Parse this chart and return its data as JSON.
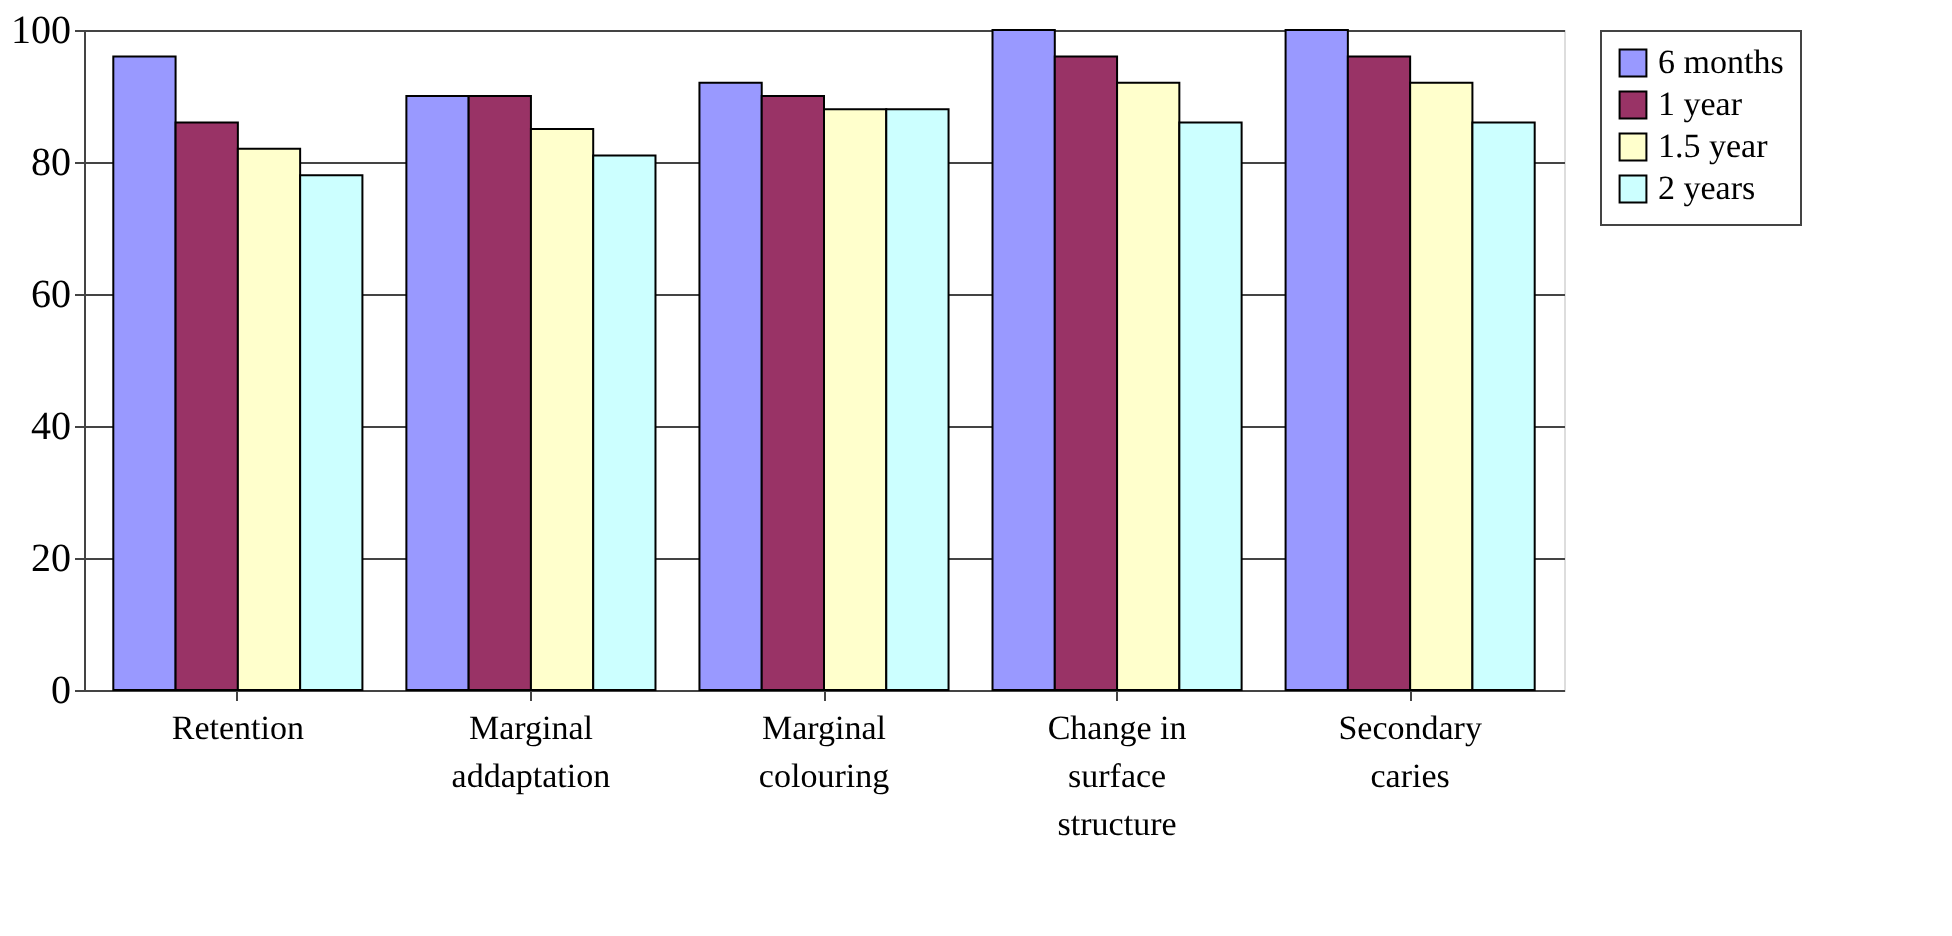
{
  "chart_data": {
    "type": "bar",
    "categories": [
      "Retention",
      "Marginal addaptation",
      "Marginal colouring",
      "Change in surface structure",
      "Secondary caries"
    ],
    "series": [
      {
        "name": "6 months",
        "color": "#9999ff",
        "values": [
          96,
          90,
          92,
          100,
          100
        ]
      },
      {
        "name": "1 year",
        "color": "#993366",
        "values": [
          86,
          90,
          90,
          96,
          96
        ]
      },
      {
        "name": "1.5 year",
        "color": "#ffffcc",
        "values": [
          82,
          85,
          88,
          92,
          92
        ]
      },
      {
        "name": "2 years",
        "color": "#ccffff",
        "values": [
          78,
          81,
          88,
          86,
          86
        ]
      }
    ],
    "ylim": [
      0,
      100
    ],
    "yticks": [
      0,
      20,
      40,
      60,
      80,
      100
    ],
    "grid": "y",
    "legend": "top right"
  }
}
